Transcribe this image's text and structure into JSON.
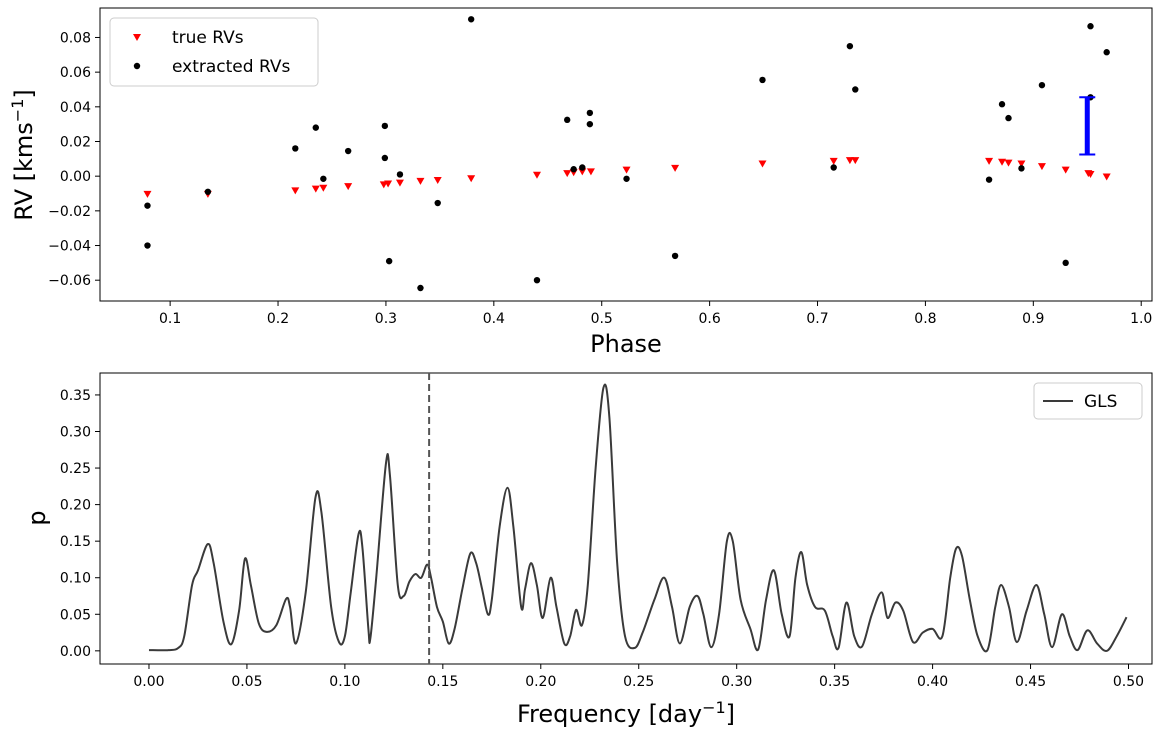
{
  "chart_data": [
    {
      "type": "scatter",
      "title": "",
      "xlabel": "Phase",
      "ylabel_main": "RV [kms",
      "ylabel_sup": "−1",
      "ylabel_end": "]",
      "xlim": [
        0.035,
        1.01
      ],
      "ylim": [
        -0.072,
        0.097
      ],
      "xticks": [
        0.1,
        0.2,
        0.3,
        0.4,
        0.5,
        0.6,
        0.7,
        0.8,
        0.9,
        1.0
      ],
      "xtick_labels": [
        "0.1",
        "0.2",
        "0.3",
        "0.4",
        "0.5",
        "0.6",
        "0.7",
        "0.8",
        "0.9",
        "1.0"
      ],
      "yticks": [
        -0.06,
        -0.04,
        -0.02,
        0.0,
        0.02,
        0.04,
        0.06,
        0.08
      ],
      "ytick_labels": [
        "−0.06",
        "−0.04",
        "−0.02",
        "0.00",
        "0.02",
        "0.04",
        "0.06",
        "0.08"
      ],
      "legend_position": "top-left",
      "colors": {
        "true": "#ff0000",
        "extracted": "#000000",
        "errorbar": "#0000ff"
      },
      "series": [
        {
          "name": "true RVs",
          "marker": "triangle-down",
          "points": [
            [
              0.079,
              -0.0105
            ],
            [
              0.135,
              -0.0105
            ],
            [
              0.216,
              -0.0085
            ],
            [
              0.235,
              -0.0075
            ],
            [
              0.242,
              -0.007
            ],
            [
              0.265,
              -0.006
            ],
            [
              0.298,
              -0.005
            ],
            [
              0.302,
              -0.0045
            ],
            [
              0.313,
              -0.004
            ],
            [
              0.332,
              -0.003
            ],
            [
              0.348,
              -0.0025
            ],
            [
              0.379,
              -0.0015
            ],
            [
              0.44,
              0.0005
            ],
            [
              0.468,
              0.0015
            ],
            [
              0.474,
              0.002
            ],
            [
              0.482,
              0.0025
            ],
            [
              0.49,
              0.0025
            ],
            [
              0.523,
              0.0035
            ],
            [
              0.568,
              0.0045
            ],
            [
              0.649,
              0.007
            ],
            [
              0.715,
              0.0085
            ],
            [
              0.73,
              0.009
            ],
            [
              0.735,
              0.009
            ],
            [
              0.859,
              0.0085
            ],
            [
              0.871,
              0.008
            ],
            [
              0.877,
              0.0075
            ],
            [
              0.889,
              0.007
            ],
            [
              0.908,
              0.0055
            ],
            [
              0.93,
              0.0035
            ],
            [
              0.951,
              0.0015
            ],
            [
              0.953,
              0.001
            ],
            [
              0.968,
              -0.0005
            ]
          ]
        },
        {
          "name": "extracted RVs",
          "marker": "circle",
          "points": [
            [
              0.079,
              -0.017
            ],
            [
              0.079,
              -0.04
            ],
            [
              0.135,
              -0.009
            ],
            [
              0.216,
              0.016
            ],
            [
              0.235,
              0.028
            ],
            [
              0.242,
              -0.0015
            ],
            [
              0.265,
              0.0145
            ],
            [
              0.299,
              0.029
            ],
            [
              0.299,
              0.0105
            ],
            [
              0.303,
              -0.049
            ],
            [
              0.313,
              0.001
            ],
            [
              0.332,
              -0.0645
            ],
            [
              0.348,
              -0.0155
            ],
            [
              0.379,
              0.0905
            ],
            [
              0.44,
              -0.06
            ],
            [
              0.468,
              0.0325
            ],
            [
              0.474,
              0.004
            ],
            [
              0.482,
              0.005
            ],
            [
              0.489,
              0.0365
            ],
            [
              0.489,
              0.03
            ],
            [
              0.523,
              -0.0015
            ],
            [
              0.568,
              -0.046
            ],
            [
              0.649,
              0.0555
            ],
            [
              0.715,
              0.005
            ],
            [
              0.73,
              0.075
            ],
            [
              0.735,
              0.05
            ],
            [
              0.859,
              -0.002
            ],
            [
              0.871,
              0.0415
            ],
            [
              0.877,
              0.0335
            ],
            [
              0.889,
              0.0045
            ],
            [
              0.908,
              0.0525
            ],
            [
              0.93,
              -0.05
            ],
            [
              0.953,
              0.0865
            ],
            [
              0.953,
              0.0455
            ],
            [
              0.968,
              0.0715
            ]
          ]
        }
      ],
      "errorbar": {
        "x": 0.95,
        "y_low": 0.0125,
        "y_high": 0.0455
      }
    },
    {
      "type": "line",
      "title": "",
      "xlabel_main": "Frequency [day",
      "xlabel_sup": "−1",
      "xlabel_end": "]",
      "ylabel": "p",
      "xlim": [
        -0.025,
        0.512
      ],
      "ylim": [
        -0.018,
        0.38
      ],
      "xticks": [
        0.0,
        0.05,
        0.1,
        0.15,
        0.2,
        0.25,
        0.3,
        0.35,
        0.4,
        0.45,
        0.5
      ],
      "xtick_labels": [
        "0.00",
        "0.05",
        "0.10",
        "0.15",
        "0.20",
        "0.25",
        "0.30",
        "0.35",
        "0.40",
        "0.45",
        "0.50"
      ],
      "yticks": [
        0.0,
        0.05,
        0.1,
        0.15,
        0.2,
        0.25,
        0.3,
        0.35
      ],
      "ytick_labels": [
        "0.00",
        "0.05",
        "0.10",
        "0.15",
        "0.20",
        "0.25",
        "0.30",
        "0.35"
      ],
      "legend_position": "top-right",
      "vline_x": 0.143,
      "colors": {
        "line": "#3a3a3a",
        "vline": "#555555"
      },
      "series": [
        {
          "name": "GLS",
          "points": [
            [
              0.0,
              0.001
            ],
            [
              0.01,
              0.001
            ],
            [
              0.015,
              0.004
            ],
            [
              0.018,
              0.02
            ],
            [
              0.022,
              0.09
            ],
            [
              0.025,
              0.11
            ],
            [
              0.03,
              0.146
            ],
            [
              0.033,
              0.12
            ],
            [
              0.038,
              0.04
            ],
            [
              0.042,
              0.009
            ],
            [
              0.046,
              0.055
            ],
            [
              0.049,
              0.126
            ],
            [
              0.052,
              0.09
            ],
            [
              0.056,
              0.038
            ],
            [
              0.06,
              0.026
            ],
            [
              0.065,
              0.035
            ],
            [
              0.07,
              0.071
            ],
            [
              0.072,
              0.06
            ],
            [
              0.075,
              0.01
            ],
            [
              0.08,
              0.08
            ],
            [
              0.085,
              0.21
            ],
            [
              0.088,
              0.19
            ],
            [
              0.093,
              0.06
            ],
            [
              0.097,
              0.012
            ],
            [
              0.1,
              0.02
            ],
            [
              0.103,
              0.08
            ],
            [
              0.107,
              0.16
            ],
            [
              0.109,
              0.14
            ],
            [
              0.112,
              0.03
            ],
            [
              0.113,
              0.017
            ],
            [
              0.116,
              0.1
            ],
            [
              0.121,
              0.257
            ],
            [
              0.123,
              0.24
            ],
            [
              0.127,
              0.09
            ],
            [
              0.13,
              0.075
            ],
            [
              0.133,
              0.095
            ],
            [
              0.136,
              0.105
            ],
            [
              0.139,
              0.1
            ],
            [
              0.142,
              0.118
            ],
            [
              0.144,
              0.1
            ],
            [
              0.147,
              0.06
            ],
            [
              0.15,
              0.04
            ],
            [
              0.153,
              0.01
            ],
            [
              0.156,
              0.03
            ],
            [
              0.16,
              0.085
            ],
            [
              0.164,
              0.133
            ],
            [
              0.167,
              0.12
            ],
            [
              0.17,
              0.085
            ],
            [
              0.173,
              0.05
            ],
            [
              0.175,
              0.07
            ],
            [
              0.179,
              0.17
            ],
            [
              0.183,
              0.223
            ],
            [
              0.186,
              0.17
            ],
            [
              0.19,
              0.06
            ],
            [
              0.192,
              0.085
            ],
            [
              0.195,
              0.12
            ],
            [
              0.198,
              0.09
            ],
            [
              0.201,
              0.045
            ],
            [
              0.205,
              0.1
            ],
            [
              0.208,
              0.06
            ],
            [
              0.212,
              0.01
            ],
            [
              0.215,
              0.02
            ],
            [
              0.218,
              0.056
            ],
            [
              0.221,
              0.035
            ],
            [
              0.224,
              0.09
            ],
            [
              0.228,
              0.25
            ],
            [
              0.232,
              0.36
            ],
            [
              0.235,
              0.32
            ],
            [
              0.239,
              0.12
            ],
            [
              0.243,
              0.02
            ],
            [
              0.248,
              0.004
            ],
            [
              0.252,
              0.025
            ],
            [
              0.258,
              0.07
            ],
            [
              0.263,
              0.1
            ],
            [
              0.267,
              0.06
            ],
            [
              0.271,
              0.01
            ],
            [
              0.276,
              0.06
            ],
            [
              0.28,
              0.075
            ],
            [
              0.283,
              0.05
            ],
            [
              0.287,
              0.005
            ],
            [
              0.291,
              0.05
            ],
            [
              0.295,
              0.15
            ],
            [
              0.298,
              0.15
            ],
            [
              0.302,
              0.07
            ],
            [
              0.307,
              0.03
            ],
            [
              0.311,
              0.002
            ],
            [
              0.315,
              0.07
            ],
            [
              0.319,
              0.11
            ],
            [
              0.323,
              0.05
            ],
            [
              0.327,
              0.02
            ],
            [
              0.33,
              0.1
            ],
            [
              0.333,
              0.135
            ],
            [
              0.336,
              0.09
            ],
            [
              0.34,
              0.06
            ],
            [
              0.345,
              0.055
            ],
            [
              0.349,
              0.02
            ],
            [
              0.352,
              0.004
            ],
            [
              0.356,
              0.066
            ],
            [
              0.36,
              0.02
            ],
            [
              0.364,
              0.006
            ],
            [
              0.369,
              0.05
            ],
            [
              0.374,
              0.08
            ],
            [
              0.377,
              0.045
            ],
            [
              0.381,
              0.066
            ],
            [
              0.385,
              0.055
            ],
            [
              0.39,
              0.012
            ],
            [
              0.395,
              0.025
            ],
            [
              0.4,
              0.03
            ],
            [
              0.405,
              0.02
            ],
            [
              0.409,
              0.1
            ],
            [
              0.412,
              0.14
            ],
            [
              0.415,
              0.13
            ],
            [
              0.419,
              0.07
            ],
            [
              0.423,
              0.02
            ],
            [
              0.428,
              0.001
            ],
            [
              0.432,
              0.06
            ],
            [
              0.435,
              0.09
            ],
            [
              0.439,
              0.06
            ],
            [
              0.443,
              0.012
            ],
            [
              0.448,
              0.055
            ],
            [
              0.453,
              0.09
            ],
            [
              0.457,
              0.05
            ],
            [
              0.461,
              0.005
            ],
            [
              0.466,
              0.05
            ],
            [
              0.47,
              0.02
            ],
            [
              0.474,
              0.001
            ],
            [
              0.479,
              0.028
            ],
            [
              0.484,
              0.01
            ],
            [
              0.489,
              0.0
            ],
            [
              0.494,
              0.02
            ],
            [
              0.499,
              0.046
            ]
          ]
        }
      ]
    }
  ]
}
